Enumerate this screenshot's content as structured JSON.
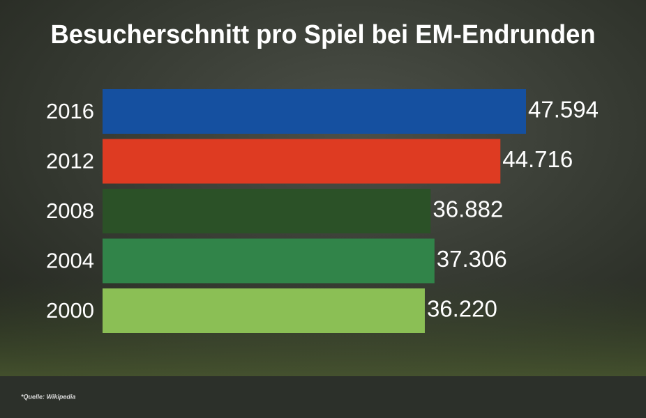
{
  "chart_data": {
    "type": "bar",
    "orientation": "horizontal",
    "title": "Besucherschnitt pro Spiel bei EM-Endrunden",
    "categories": [
      "2016",
      "2012",
      "2008",
      "2004",
      "2000"
    ],
    "values": [
      47594,
      44716,
      36882,
      37306,
      36220
    ],
    "value_labels": [
      "47.594",
      "44.716",
      "36.882",
      "37.306",
      "36.220"
    ],
    "colors": [
      "#1550a0",
      "#de3b22",
      "#2b5127",
      "#318449",
      "#8bbf55"
    ],
    "source": "*Quelle: Wikipedia"
  }
}
